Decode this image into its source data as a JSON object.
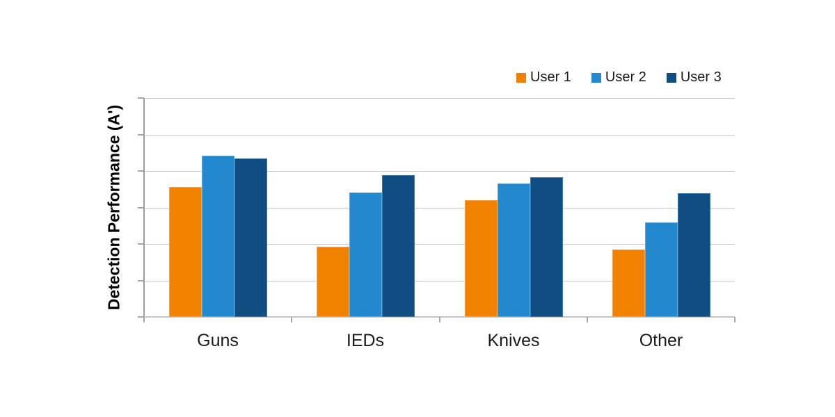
{
  "chart_data": {
    "type": "bar",
    "title": "",
    "categories": [
      "Guns",
      "IEDs",
      "Knives",
      "Other"
    ],
    "series": [
      {
        "name": "User 1",
        "color": "#F08200",
        "border_color": "#F7A24B",
        "values": [
          0.594,
          0.321,
          0.533,
          0.308
        ]
      },
      {
        "name": "User 2",
        "color": "#2389CE",
        "border_color": "#5FA8DC",
        "values": [
          0.737,
          0.568,
          0.61,
          0.432
        ]
      },
      {
        "name": "User 3",
        "color": "#0F4D82",
        "border_color": "#3C78AA",
        "values": [
          0.724,
          0.648,
          0.638,
          0.565
        ]
      }
    ],
    "xlabel": "",
    "ylabel": "Detection Performance (A')",
    "ylim": [
      0,
      1
    ],
    "y_axis_tick_labels_visible": false,
    "values_note": "y-axis has no numeric tick labels; values are fractions of full plot height estimated from gridlines",
    "gridline_levels": 7,
    "grid_on": true,
    "legend_position": "top-right",
    "legend_labels": [
      "User 1",
      "User 2",
      "User 3"
    ],
    "grid_color": "#C9C9C9",
    "axis_color": "#9C9C9C",
    "baseline_color": "#C4C4C4",
    "tick_color": "#A6A6A6",
    "text_color": "#1A1A1A",
    "background": "#FFFFFF"
  }
}
